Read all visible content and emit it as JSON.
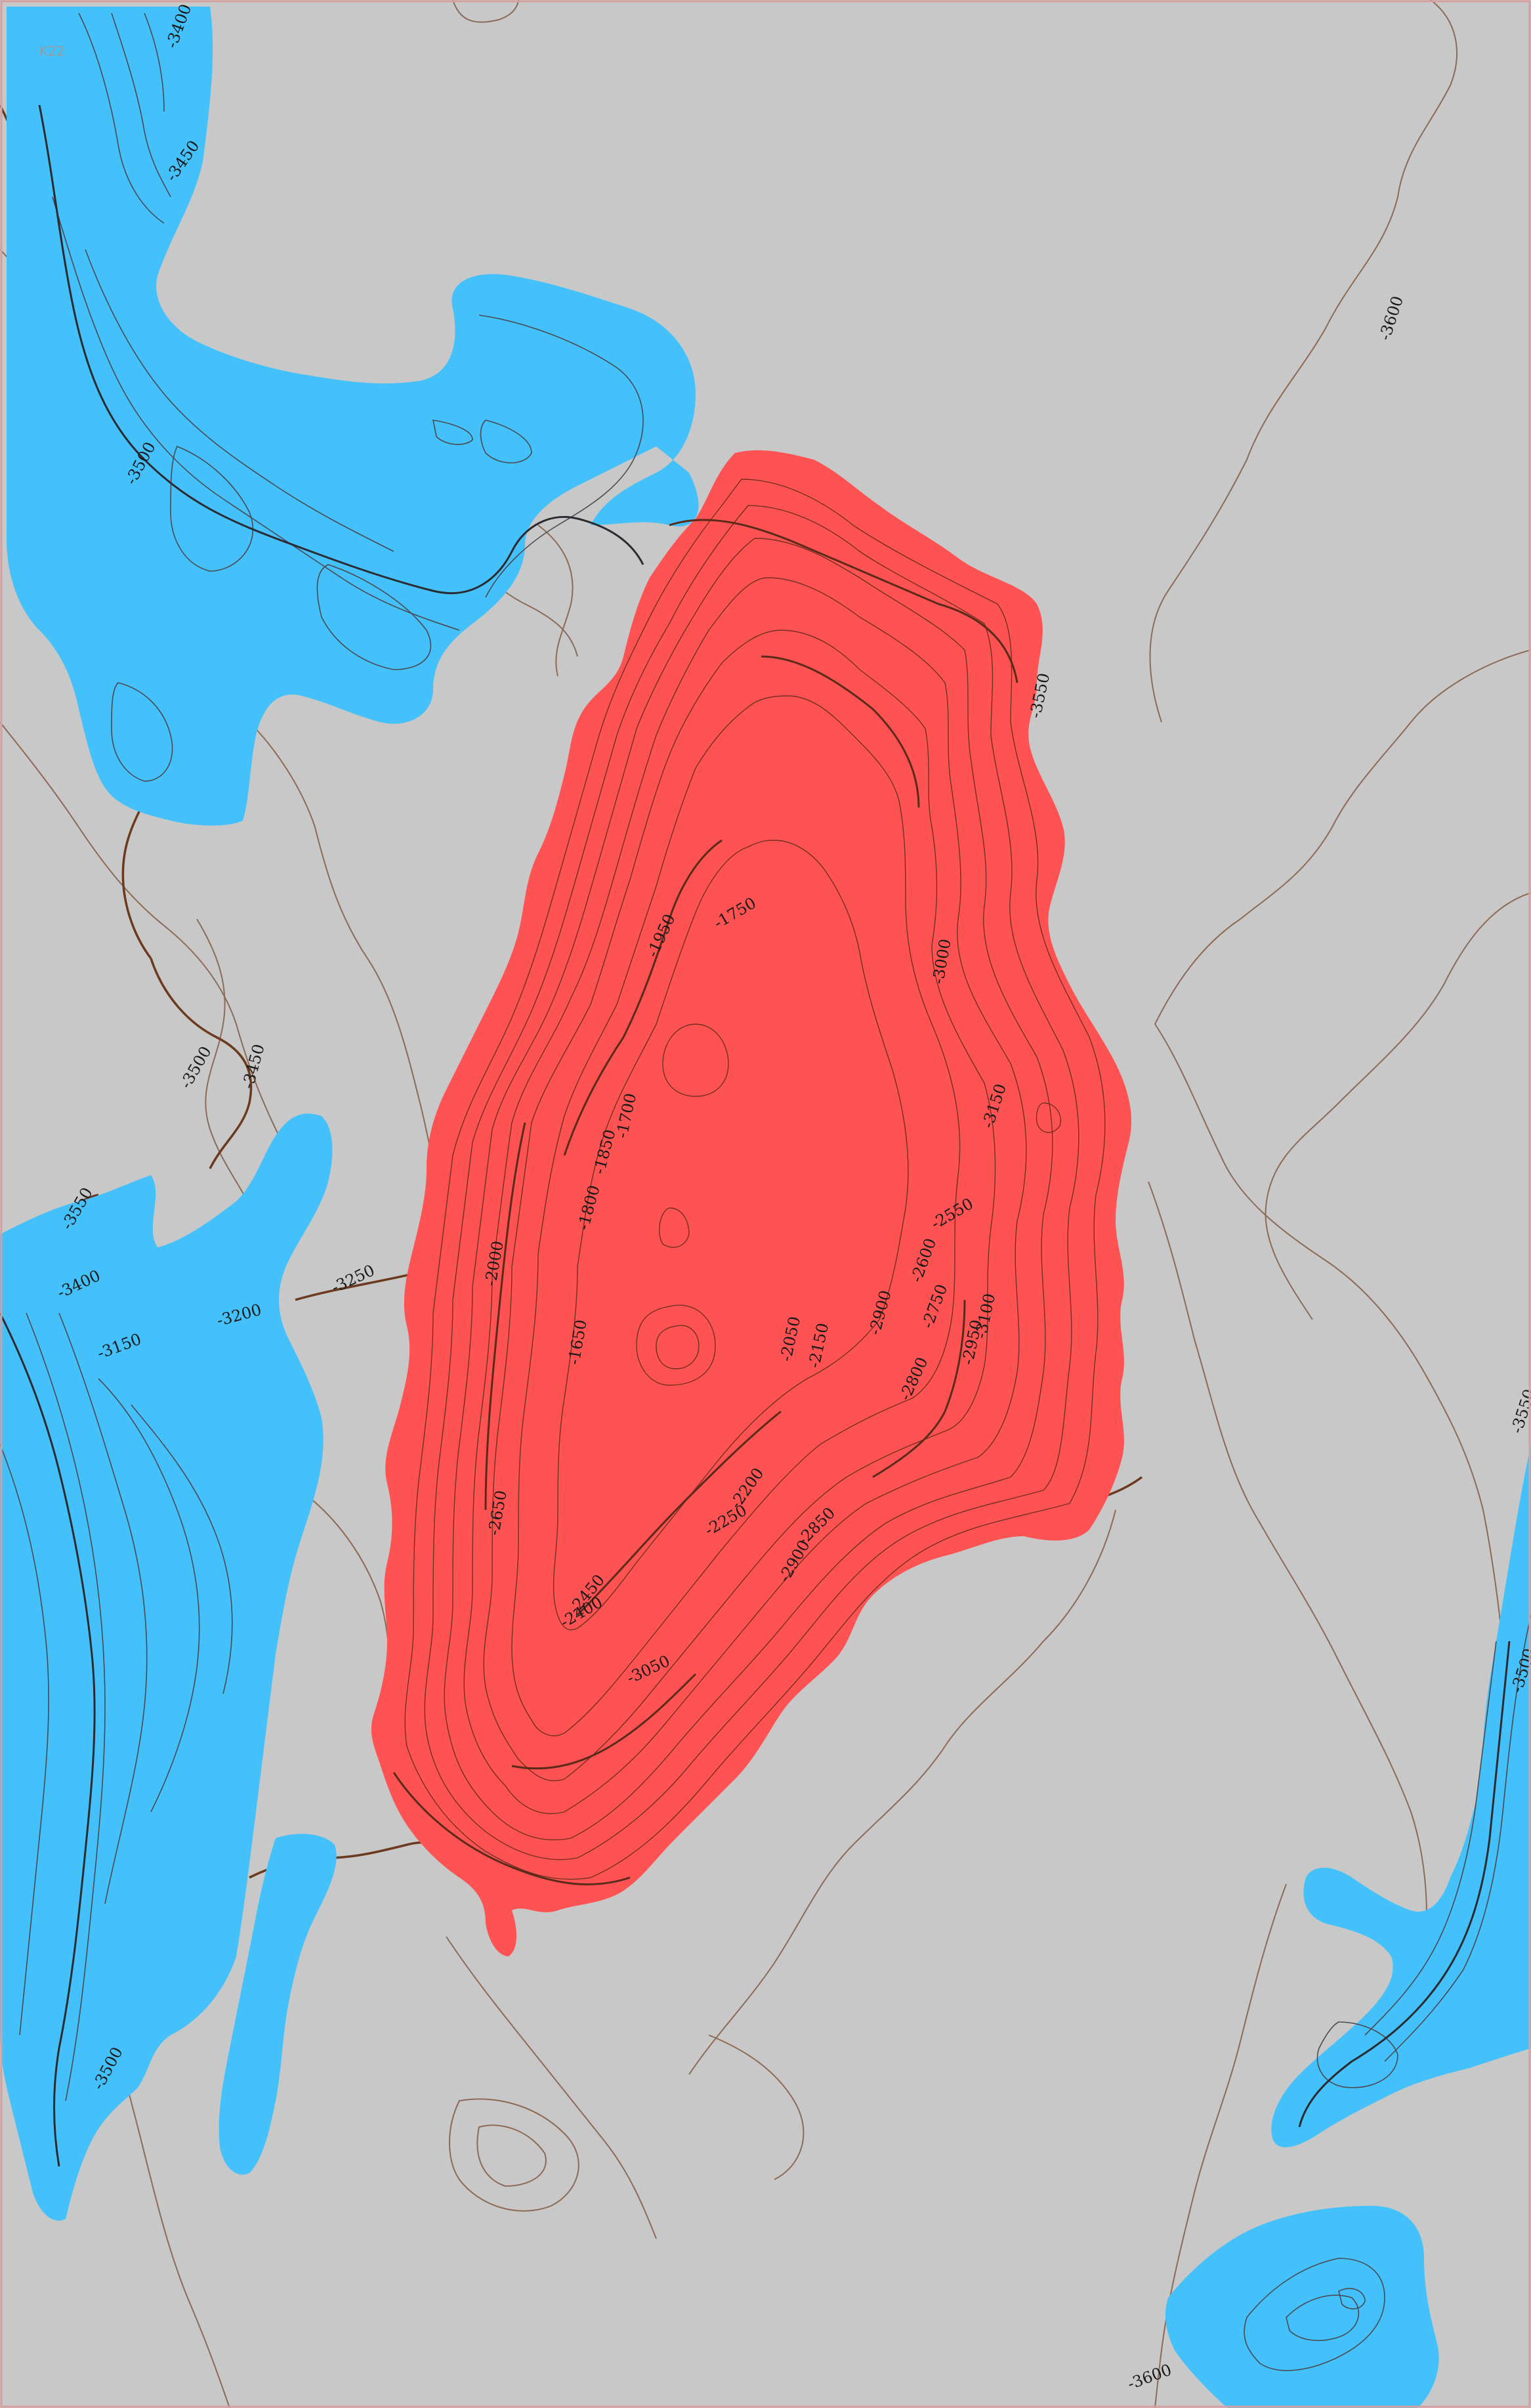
{
  "map": {
    "sheet_id": "K22",
    "colors": {
      "background": "#c8c8c8",
      "seamount": "#ff5252",
      "deep_basin": "#44c1fb",
      "contour_major": "#6b3a1e",
      "contour_minor": "#8c6a55",
      "contour_in_fill": "#5a2a1a",
      "frame": "#d7a0a0"
    },
    "legend": null,
    "contour_labels": [
      {
        "id": "nw-3400",
        "text": "-3400"
      },
      {
        "id": "nw-3450",
        "text": "-3450"
      },
      {
        "id": "nw-3500",
        "text": "-3500"
      },
      {
        "id": "ne-3600",
        "text": "-3600"
      },
      {
        "id": "w-3500",
        "text": "-3500"
      },
      {
        "id": "w-3450",
        "text": "-3450"
      },
      {
        "id": "w-3550",
        "text": "-3550"
      },
      {
        "id": "w-3400",
        "text": "-3400"
      },
      {
        "id": "w-3200",
        "text": "-3200"
      },
      {
        "id": "w-3150",
        "text": "-3150"
      },
      {
        "id": "mid-3250",
        "text": "-3250"
      },
      {
        "id": "sw-3500",
        "text": "-3500"
      },
      {
        "id": "red-3550",
        "text": "-3550"
      },
      {
        "id": "red-1750",
        "text": "-1750"
      },
      {
        "id": "red-1950",
        "text": "-1950"
      },
      {
        "id": "red-3000",
        "text": "-3000"
      },
      {
        "id": "red-1700",
        "text": "-1700"
      },
      {
        "id": "red-1850",
        "text": "-1850"
      },
      {
        "id": "red-1800",
        "text": "-1800"
      },
      {
        "id": "red-3150",
        "text": "-3150"
      },
      {
        "id": "red-2550",
        "text": "-2550"
      },
      {
        "id": "red-2600",
        "text": "-2600"
      },
      {
        "id": "red-2000",
        "text": "-2000"
      },
      {
        "id": "red-2900",
        "text": "-2900"
      },
      {
        "id": "red-2750",
        "text": "-2750"
      },
      {
        "id": "red-3100",
        "text": "-3100"
      },
      {
        "id": "red-2950",
        "text": "-2950"
      },
      {
        "id": "red-2800",
        "text": "-2800"
      },
      {
        "id": "red-2150",
        "text": "-2150"
      },
      {
        "id": "red-1650",
        "text": "-1650"
      },
      {
        "id": "red-2050",
        "text": "-2050"
      },
      {
        "id": "red-2450",
        "text": "-2450"
      },
      {
        "id": "red-2200",
        "text": "-2200"
      },
      {
        "id": "red-2250",
        "text": "-2250"
      },
      {
        "id": "red-2850",
        "text": "-2850"
      },
      {
        "id": "red-2900b",
        "text": "-2900"
      },
      {
        "id": "red-2400",
        "text": "-2400"
      },
      {
        "id": "red-2650",
        "text": "-2650"
      },
      {
        "id": "red-3050",
        "text": "-3050"
      },
      {
        "id": "e-3550",
        "text": "-3550"
      },
      {
        "id": "e-3500",
        "text": "-3500"
      },
      {
        "id": "s-3600",
        "text": "-3600"
      }
    ]
  }
}
